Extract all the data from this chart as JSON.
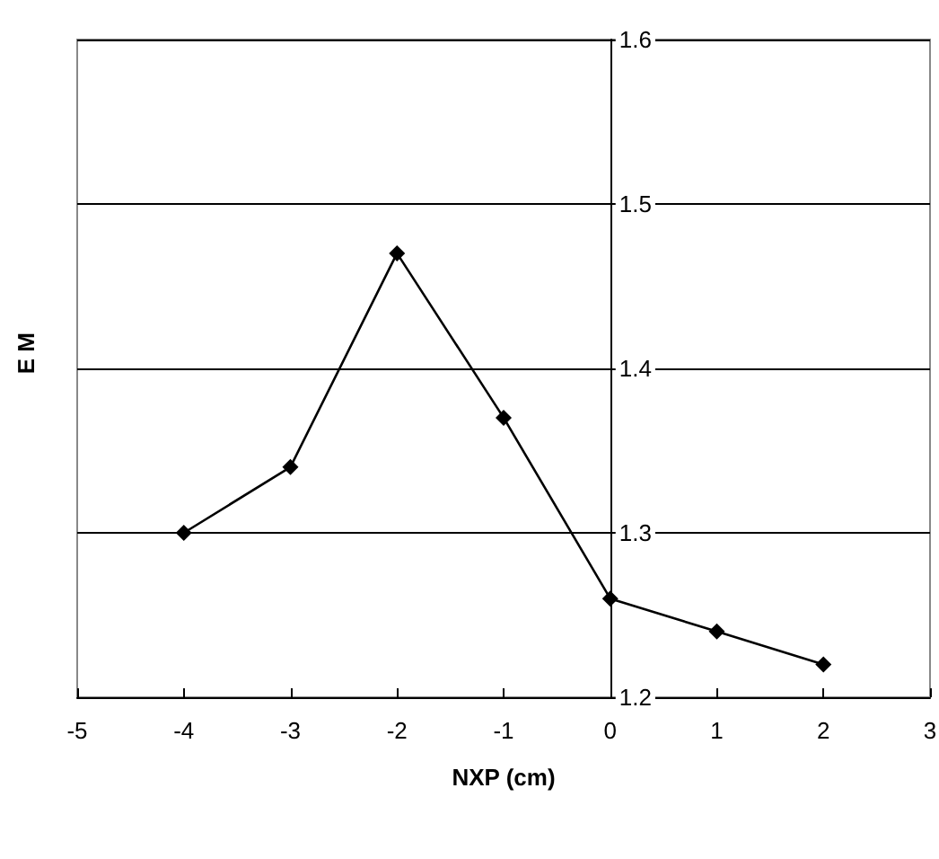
{
  "chart_data": {
    "type": "line",
    "xlabel": "NXP (cm)",
    "ylabel": "E M",
    "x": [
      -4,
      -3,
      -2,
      -1,
      0,
      1,
      2
    ],
    "series": [
      {
        "color": "#000000",
        "values": [
          1.3,
          1.34,
          1.47,
          1.37,
          1.26,
          1.24,
          1.22
        ]
      }
    ],
    "xlim": [
      -5,
      3
    ],
    "xticks": [
      -5,
      -4,
      -3,
      -2,
      -1,
      0,
      1,
      2,
      3
    ],
    "ylim": [
      1.2,
      1.6
    ],
    "yticks": [
      1.2,
      1.3,
      1.4,
      1.5,
      1.6
    ],
    "grid": "y",
    "marker": "diamond",
    "line_style": "solid"
  }
}
